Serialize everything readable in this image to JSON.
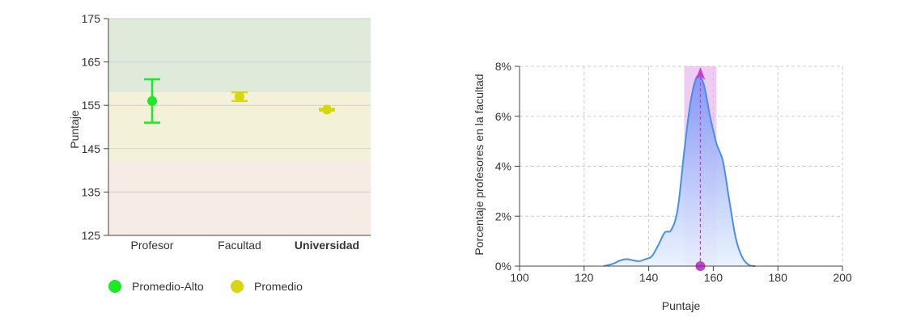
{
  "chart_data": [
    {
      "type": "scatter",
      "ylabel": "Puntaje",
      "ylim": [
        125,
        175
      ],
      "yticks": [
        125,
        135,
        145,
        155,
        165,
        175
      ],
      "categories": [
        "Profesor",
        "Facultad",
        "Universidad"
      ],
      "points": [
        {
          "category": "Profesor",
          "value": 156,
          "low": 151,
          "high": 161,
          "legend": "Promedio-Alto"
        },
        {
          "category": "Facultad",
          "value": 157,
          "low": 156,
          "high": 158,
          "legend": "Promedio"
        },
        {
          "category": "Universidad",
          "value": 154,
          "low": 153.8,
          "high": 154.2,
          "legend": "Promedio"
        }
      ],
      "bands": [
        {
          "from": 158,
          "to": 175,
          "color": "#dfeadb"
        },
        {
          "from": 142,
          "to": 158,
          "color": "#f3f2d9"
        },
        {
          "from": 125,
          "to": 142,
          "color": "#f6ece5"
        }
      ],
      "legend": [
        {
          "label": "Promedio-Alto",
          "color": "#1ee82a"
        },
        {
          "label": "Promedio",
          "color": "#d8d60e"
        }
      ],
      "legend_position": "bottom-left",
      "grid": true
    },
    {
      "type": "area",
      "xlabel": "Puntaje",
      "ylabel": "Porcentaje profesores en la facultad",
      "xlim": [
        100,
        200
      ],
      "ylim": [
        0,
        8
      ],
      "xticks": [
        100,
        120,
        140,
        160,
        180,
        200
      ],
      "yticks": [
        "0%",
        "2%",
        "4%",
        "6%",
        "8%"
      ],
      "x": [
        126,
        129,
        131,
        133,
        135,
        137,
        139,
        141,
        143,
        145,
        147,
        149,
        151,
        153,
        155,
        157,
        159,
        161,
        163,
        165,
        167,
        169,
        171,
        173
      ],
      "y": [
        0,
        0.1,
        0.22,
        0.28,
        0.24,
        0.2,
        0.28,
        0.4,
        0.85,
        1.35,
        1.45,
        2.3,
        4.6,
        6.6,
        7.6,
        7.3,
        6.0,
        4.9,
        4.2,
        2.6,
        1.1,
        0.35,
        0.05,
        0
      ],
      "marker": {
        "x": 156,
        "band": [
          151,
          161
        ],
        "band_color": "#e8b6ee",
        "line_color": "#c23fd0"
      },
      "line_color": "#4a8fe6",
      "grid": true
    }
  ]
}
